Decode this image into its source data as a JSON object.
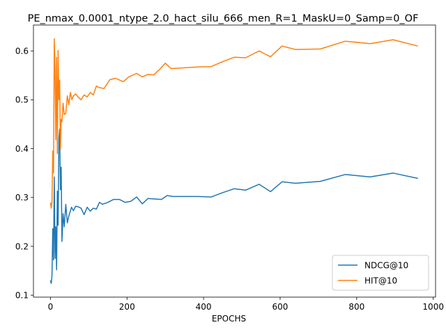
{
  "chart_data": {
    "type": "line",
    "title": "PE_nmax_0.0001_ntype_2.0_hact_silu_666_men_R=1_MaskU=0_Samp=0_OF",
    "xlabel": "EPOCHS",
    "ylabel": "",
    "xlim": [
      -44.4,
      1006
    ],
    "ylim": [
      0.096,
      0.653
    ],
    "xticks": [
      0,
      200,
      400,
      600,
      800,
      1000
    ],
    "yticks": [
      0.1,
      0.2,
      0.3,
      0.4,
      0.5,
      0.6
    ],
    "xtick_labels": [
      "0",
      "200",
      "400",
      "600",
      "800",
      "1000"
    ],
    "ytick_labels": [
      "0.1",
      "0.2",
      "0.3",
      "0.4",
      "0.5",
      "0.6"
    ],
    "grid": false,
    "legend_position": "lower-right",
    "series": [
      {
        "name": "NDCG@10",
        "color": "#1f77b4",
        "x": [
          0,
          2,
          4,
          6,
          8,
          10,
          12,
          14,
          16,
          18,
          20,
          22,
          24,
          26,
          28,
          30,
          33,
          36,
          40,
          44,
          48,
          55,
          60,
          66,
          72,
          80,
          88,
          96,
          104,
          112,
          120,
          128,
          136,
          150,
          165,
          180,
          195,
          210,
          225,
          240,
          255,
          270,
          290,
          305,
          320,
          350,
          385,
          420,
          450,
          480,
          510,
          545,
          575,
          605,
          640,
          705,
          770,
          835,
          895,
          960
        ],
        "values": [
          0.13,
          0.124,
          0.14,
          0.236,
          0.172,
          0.342,
          0.175,
          0.24,
          0.152,
          0.313,
          0.243,
          0.42,
          0.44,
          0.316,
          0.362,
          0.21,
          0.267,
          0.24,
          0.286,
          0.248,
          0.262,
          0.28,
          0.273,
          0.282,
          0.281,
          0.278,
          0.265,
          0.28,
          0.272,
          0.278,
          0.276,
          0.29,
          0.286,
          0.29,
          0.296,
          0.296,
          0.29,
          0.292,
          0.301,
          0.287,
          0.298,
          0.297,
          0.296,
          0.304,
          0.302,
          0.302,
          0.302,
          0.301,
          0.31,
          0.318,
          0.315,
          0.327,
          0.312,
          0.332,
          0.329,
          0.333,
          0.347,
          0.342,
          0.35,
          0.339
        ]
      },
      {
        "name": "HIT@10",
        "color": "#ff7f0e",
        "x": [
          0,
          2,
          4,
          6,
          8,
          10,
          12,
          14,
          16,
          18,
          20,
          22,
          24,
          26,
          28,
          30,
          33,
          36,
          40,
          44,
          48,
          52,
          56,
          60,
          66,
          72,
          80,
          88,
          96,
          104,
          112,
          120,
          128,
          140,
          155,
          170,
          190,
          205,
          225,
          240,
          255,
          270,
          285,
          300,
          315,
          340,
          380,
          420,
          450,
          480,
          510,
          545,
          575,
          605,
          640,
          705,
          770,
          835,
          895,
          960
        ],
        "values": [
          0.29,
          0.278,
          0.29,
          0.395,
          0.35,
          0.625,
          0.56,
          0.418,
          0.587,
          0.39,
          0.601,
          0.5,
          0.54,
          0.398,
          0.46,
          0.455,
          0.493,
          0.47,
          0.472,
          0.508,
          0.49,
          0.515,
          0.5,
          0.508,
          0.512,
          0.506,
          0.5,
          0.51,
          0.506,
          0.515,
          0.51,
          0.528,
          0.525,
          0.523,
          0.541,
          0.544,
          0.537,
          0.547,
          0.554,
          0.547,
          0.552,
          0.551,
          0.562,
          0.575,
          0.564,
          0.565,
          0.567,
          0.568,
          0.578,
          0.587,
          0.586,
          0.6,
          0.588,
          0.61,
          0.603,
          0.604,
          0.62,
          0.615,
          0.623,
          0.61
        ]
      }
    ]
  }
}
